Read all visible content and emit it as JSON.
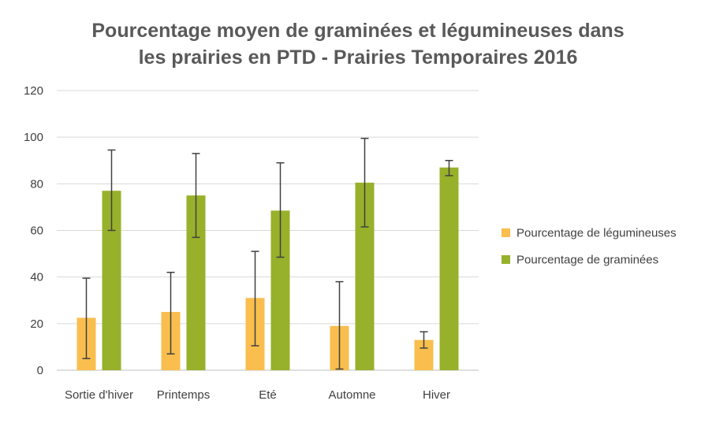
{
  "chart_data": {
    "type": "bar",
    "title_lines": [
      "Pourcentage moyen de graminées et légumineuses dans",
      "les prairies en PTD - Prairies Temporaires 2016"
    ],
    "categories": [
      "Sortie d'hiver",
      "Printemps",
      "Eté",
      "Automne",
      "Hiver"
    ],
    "series": [
      {
        "name": "Pourcentage de légumineuses",
        "color": "#F9BE4E",
        "values": [
          22.5,
          25,
          31,
          19,
          13
        ],
        "error_low": [
          5,
          7,
          10.5,
          0.5,
          9.5
        ],
        "error_high": [
          39.5,
          42,
          51,
          38,
          16.5
        ]
      },
      {
        "name": "Pourcentage de graminées",
        "color": "#97B12B",
        "values": [
          77,
          75,
          68.5,
          80.5,
          87
        ],
        "error_low": [
          60,
          57,
          48.5,
          61.5,
          83.5
        ],
        "error_high": [
          94.5,
          93,
          89,
          99.5,
          90
        ]
      }
    ],
    "ylim": [
      0,
      120
    ],
    "yticks": [
      0,
      20,
      40,
      60,
      80,
      100,
      120
    ],
    "grid": true,
    "legend_position": "right",
    "xlabel": "",
    "ylabel": ""
  }
}
